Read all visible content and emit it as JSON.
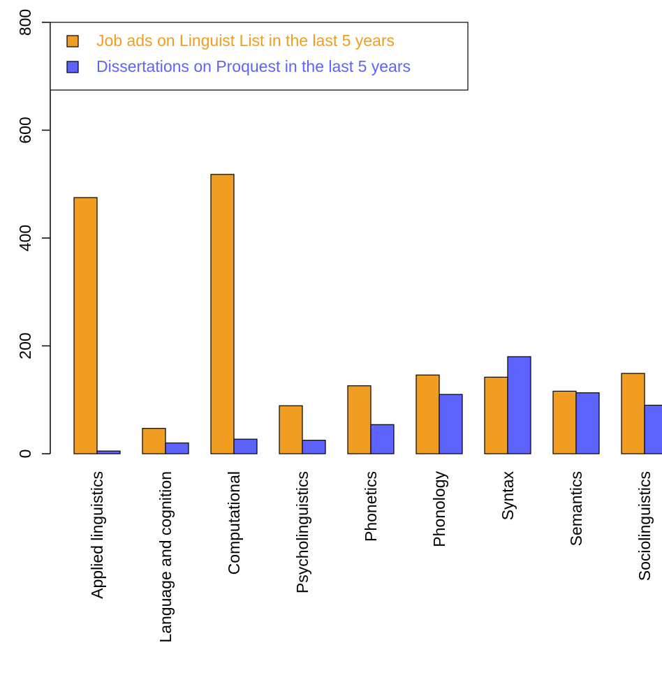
{
  "chart_data": {
    "type": "bar",
    "categories": [
      "Applied linguistics",
      "Language and cognition",
      "Computational",
      "Psycholinguistics",
      "Phonetics",
      "Phonology",
      "Syntax",
      "Semantics",
      "Sociolinguistics"
    ],
    "series": [
      {
        "name": "Job ads on Linguist List in the last 5 years",
        "color": "#f09d22",
        "values": [
          475,
          47,
          518,
          89,
          126,
          146,
          142,
          116,
          149
        ]
      },
      {
        "name": "Dissertations on Proquest in the last 5 years",
        "color": "#5f63fe",
        "values": [
          5,
          20,
          27,
          25,
          54,
          110,
          180,
          113,
          90
        ]
      }
    ],
    "ylim": [
      0,
      800
    ],
    "yticks": [
      "0",
      "200",
      "400",
      "600",
      "800"
    ],
    "legend": "top-left",
    "grid": false
  }
}
